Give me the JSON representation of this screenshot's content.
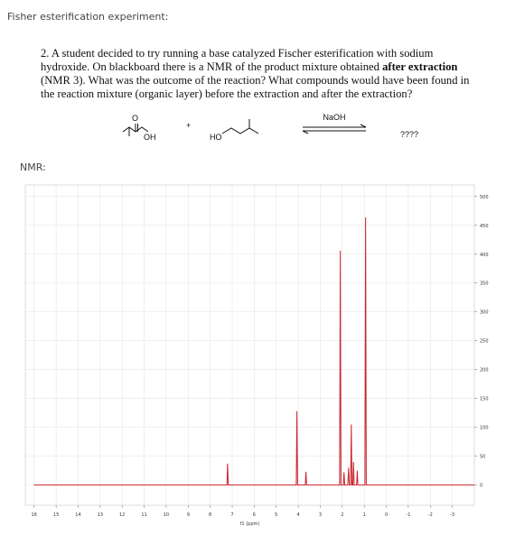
{
  "header": {
    "title": "Fisher esterification experiment:"
  },
  "question": {
    "lines": [
      "2. A student decided to try running a base catalyzed Fischer esterification with sodium",
      {
        "text": "hydroxide. On blackboard there is a NMR of the product mixture obtained ",
        "bold": "after extraction"
      },
      "(NMR 3). What was the outcome of the reaction? What compounds would have been found in",
      "the reaction mixture (organic layer) before the extraction and after the extraction?"
    ]
  },
  "reaction": {
    "acid_oxygen": "O",
    "acid_hydroxyl": "OH",
    "plus": "+",
    "alcohol_hydroxyl": "HO",
    "reagent": "NaOH",
    "product": "????"
  },
  "nmr_label": "NMR:",
  "chart_data": {
    "type": "line",
    "x_label": "f1 (ppm)",
    "color": "#c8232c",
    "grid": true,
    "y_axis_side": "right",
    "x": [
      16,
      7.24,
      7.21,
      7.18,
      4.09,
      4.06,
      4.03,
      3.68,
      3.65,
      3.62,
      2.12,
      2.09,
      2.06,
      1.95,
      1.92,
      1.89,
      1.75,
      1.71,
      1.68,
      1.62,
      1.59,
      1.56,
      1.52,
      1.49,
      1.46,
      1.35,
      1.32,
      1.29,
      0.97,
      0.94,
      0.91,
      -4
    ],
    "values": [
      0,
      0,
      37,
      0,
      0,
      128,
      0,
      0,
      23,
      0,
      0,
      406,
      0,
      0,
      22,
      0,
      0,
      30,
      0,
      0,
      105,
      0,
      0,
      40,
      0,
      0,
      25,
      0,
      0,
      464,
      0,
      0
    ],
    "xlim": [
      16.4,
      -4
    ],
    "xticks": [
      16,
      15,
      14,
      13,
      12,
      11,
      10,
      9,
      8,
      7,
      6,
      5,
      4,
      3,
      2,
      1,
      0,
      -1,
      -2,
      -3
    ],
    "ylim": [
      -35,
      520
    ],
    "yticks": [
      0,
      50,
      100,
      150,
      200,
      250,
      300,
      350,
      400,
      450,
      500
    ]
  }
}
